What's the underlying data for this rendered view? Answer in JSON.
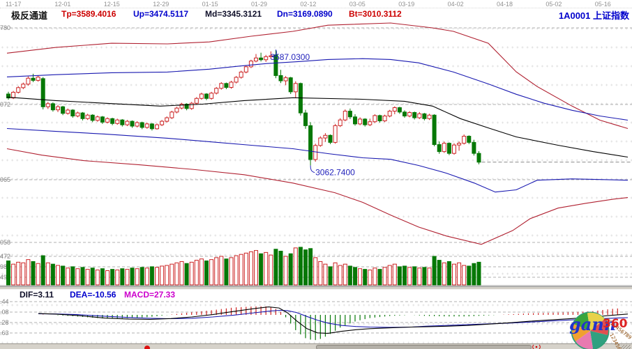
{
  "header": {
    "dates": [
      "11-17",
      "12-01",
      "12-15",
      "12-29",
      "01-15",
      "01-29",
      "02-12",
      "03-05",
      "03-19",
      "04-02",
      "04-18",
      "05-02",
      "05-16"
    ],
    "indicator_name": "极反通道",
    "params": [
      {
        "text": "Tp=3589.4016",
        "color": "#cc0000"
      },
      {
        "text": "Up=3474.5117",
        "color": "#0000cc"
      },
      {
        "text": "Md=3345.3121",
        "color": "#10102a"
      },
      {
        "text": "Dn=3169.0890",
        "color": "#0000cc"
      },
      {
        "text": "Bt=3010.3112",
        "color": "#cc0000"
      }
    ],
    "symbol": "1A0001 上证指数"
  },
  "macd_header": {
    "items": [
      {
        "text": "DIF=3.11",
        "color": "#10102a"
      },
      {
        "text": "DEA=-10.56",
        "color": "#0000cc"
      },
      {
        "text": "MACD=27.33",
        "color": "#cc00cc"
      }
    ]
  },
  "logo": {
    "gann": "gann",
    "num": "360",
    "rim_digits_top": "0123456789",
    "rim_digits_bottom": "123456789"
  },
  "colors": {
    "up": "#cc2222",
    "down": "#067806",
    "tp_bt": "#b02030",
    "up_dn": "#1818b0",
    "md": "#000000",
    "grid": "#b0b0b0",
    "annotation": "#2222bb",
    "axis_text": "#808080"
  },
  "chart_data": {
    "type": "candlestick+volume+macd",
    "title": "1A0001 上证指数 极反通道",
    "ylim": [
      2697,
      3727
    ],
    "price_ticks": [
      [
        40,
        "780"
      ],
      [
        150,
        "072"
      ],
      [
        258,
        "065"
      ],
      [
        348,
        "058"
      ]
    ],
    "vol_ticks": [
      [
        368,
        "472"
      ],
      [
        383,
        "981"
      ],
      [
        398,
        "491"
      ]
    ],
    "macd_ticks": [
      [
        433,
        ".44"
      ],
      [
        448,
        ".08"
      ],
      [
        463,
        ".28"
      ],
      [
        478,
        ".63"
      ]
    ],
    "annotations": {
      "high_label": "3587.0300",
      "low_label": "3062.7400"
    },
    "last_price": 3078,
    "vol_max": 2950,
    "candles": [
      [
        3388,
        3398,
        3362,
        3370
      ],
      [
        3370,
        3402,
        3365,
        3396
      ],
      [
        3396,
        3424,
        3390,
        3417
      ],
      [
        3417,
        3440,
        3410,
        3433
      ],
      [
        3433,
        3468,
        3426,
        3460
      ],
      [
        3460,
        3480,
        3442,
        3450
      ],
      [
        3450,
        3472,
        3444,
        3465
      ],
      [
        3458,
        3465,
        3318,
        3330
      ],
      [
        3330,
        3352,
        3320,
        3344
      ],
      [
        3344,
        3350,
        3308,
        3316
      ],
      [
        3316,
        3338,
        3306,
        3330
      ],
      [
        3330,
        3334,
        3292,
        3300
      ],
      [
        3300,
        3322,
        3294,
        3315
      ],
      [
        3315,
        3319,
        3280,
        3288
      ],
      [
        3288,
        3308,
        3282,
        3302
      ],
      [
        3302,
        3306,
        3268,
        3276
      ],
      [
        3276,
        3298,
        3270,
        3292
      ],
      [
        3292,
        3296,
        3260,
        3268
      ],
      [
        3268,
        3290,
        3262,
        3284
      ],
      [
        3284,
        3288,
        3252,
        3260
      ],
      [
        3260,
        3282,
        3254,
        3276
      ],
      [
        3276,
        3280,
        3246,
        3254
      ],
      [
        3254,
        3276,
        3248,
        3270
      ],
      [
        3270,
        3274,
        3240,
        3248
      ],
      [
        3248,
        3270,
        3242,
        3264
      ],
      [
        3264,
        3268,
        3234,
        3242
      ],
      [
        3242,
        3264,
        3236,
        3258
      ],
      [
        3258,
        3262,
        3228,
        3236
      ],
      [
        3236,
        3258,
        3230,
        3252
      ],
      [
        3252,
        3256,
        3222,
        3230
      ],
      [
        3230,
        3254,
        3226,
        3248
      ],
      [
        3248,
        3270,
        3242,
        3264
      ],
      [
        3264,
        3286,
        3258,
        3280
      ],
      [
        3280,
        3312,
        3274,
        3306
      ],
      [
        3306,
        3330,
        3300,
        3324
      ],
      [
        3324,
        3348,
        3318,
        3342
      ],
      [
        3342,
        3346,
        3314,
        3322
      ],
      [
        3322,
        3352,
        3316,
        3346
      ],
      [
        3346,
        3374,
        3340,
        3368
      ],
      [
        3368,
        3394,
        3362,
        3388
      ],
      [
        3388,
        3392,
        3360,
        3368
      ],
      [
        3368,
        3398,
        3362,
        3392
      ],
      [
        3392,
        3420,
        3386,
        3414
      ],
      [
        3414,
        3442,
        3408,
        3436
      ],
      [
        3436,
        3440,
        3410,
        3418
      ],
      [
        3418,
        3448,
        3412,
        3442
      ],
      [
        3442,
        3470,
        3436,
        3464
      ],
      [
        3464,
        3494,
        3458,
        3488
      ],
      [
        3488,
        3518,
        3482,
        3512
      ],
      [
        3512,
        3544,
        3506,
        3538
      ],
      [
        3538,
        3570,
        3532,
        3552
      ],
      [
        3552,
        3576,
        3536,
        3544
      ],
      [
        3544,
        3566,
        3534,
        3558
      ],
      [
        3558,
        3582,
        3548,
        3562
      ],
      [
        3566,
        3587.03,
        3460,
        3472
      ],
      [
        3472,
        3498,
        3438,
        3448
      ],
      [
        3448,
        3470,
        3428,
        3462
      ],
      [
        3462,
        3466,
        3388,
        3398
      ],
      [
        3398,
        3446,
        3372,
        3436
      ],
      [
        3436,
        3440,
        3290,
        3302
      ],
      [
        3302,
        3316,
        3230,
        3244
      ],
      [
        3244,
        3260,
        3062.74,
        3090
      ],
      [
        3090,
        3162,
        3080,
        3154
      ],
      [
        3154,
        3196,
        3148,
        3188
      ],
      [
        3188,
        3210,
        3170,
        3200
      ],
      [
        3200,
        3204,
        3160,
        3168
      ],
      [
        3168,
        3252,
        3162,
        3244
      ],
      [
        3244,
        3278,
        3238,
        3270
      ],
      [
        3270,
        3318,
        3264,
        3310
      ],
      [
        3310,
        3322,
        3274,
        3284
      ],
      [
        3284,
        3296,
        3244,
        3252
      ],
      [
        3252,
        3282,
        3246,
        3274
      ],
      [
        3274,
        3278,
        3240,
        3248
      ],
      [
        3248,
        3276,
        3242,
        3262
      ],
      [
        3262,
        3296,
        3256,
        3290
      ],
      [
        3290,
        3294,
        3258,
        3266
      ],
      [
        3266,
        3294,
        3260,
        3288
      ],
      [
        3288,
        3316,
        3282,
        3310
      ],
      [
        3310,
        3332,
        3296,
        3326
      ],
      [
        3326,
        3330,
        3298,
        3306
      ],
      [
        3306,
        3314,
        3280,
        3288
      ],
      [
        3288,
        3310,
        3282,
        3304
      ],
      [
        3304,
        3308,
        3272,
        3280
      ],
      [
        3280,
        3306,
        3274,
        3298
      ],
      [
        3298,
        3302,
        3268,
        3276
      ],
      [
        3276,
        3298,
        3270,
        3292
      ],
      [
        3292,
        3296,
        3150,
        3158
      ],
      [
        3158,
        3172,
        3116,
        3126
      ],
      [
        3126,
        3172,
        3120,
        3164
      ],
      [
        3164,
        3168,
        3110,
        3118
      ],
      [
        3118,
        3164,
        3112,
        3156
      ],
      [
        3156,
        3172,
        3130,
        3164
      ],
      [
        3164,
        3204,
        3158,
        3196
      ],
      [
        3196,
        3200,
        3160,
        3168
      ],
      [
        3168,
        3180,
        3108,
        3118
      ],
      [
        3118,
        3128,
        3068,
        3078
      ]
    ],
    "volumes": [
      1850,
      1600,
      1750,
      1700,
      1950,
      1800,
      1650,
      2250,
      1700,
      1600,
      1500,
      1450,
      1300,
      1400,
      1250,
      1350,
      1200,
      1300,
      1150,
      1250,
      1100,
      1200,
      1150,
      1250,
      1200,
      1300,
      1250,
      1350,
      1300,
      1400,
      1350,
      1450,
      1500,
      1600,
      1700,
      1800,
      1650,
      1750,
      1900,
      2000,
      1850,
      1950,
      2100,
      2200,
      2000,
      2100,
      2250,
      2350,
      2450,
      2550,
      2650,
      2400,
      2500,
      2300,
      2750,
      2600,
      2200,
      2400,
      2850,
      2900,
      2700,
      2800,
      2100,
      1800,
      1600,
      1400,
      1700,
      1500,
      1600,
      1450,
      1350,
      1250,
      1200,
      1150,
      1300,
      1200,
      1350,
      1500,
      1600,
      1400,
      1450,
      1350,
      1400,
      1300,
      1350,
      1300,
      2200,
      1900,
      1700,
      1800,
      1600,
      1700,
      1500,
      1450,
      1650,
      1750
    ],
    "channel": {
      "tp": [
        [
          10,
          3574
        ],
        [
          80,
          3600
        ],
        [
          160,
          3619
        ],
        [
          240,
          3616
        ],
        [
          300,
          3625
        ],
        [
          360,
          3651
        ],
        [
          420,
          3673
        ],
        [
          470,
          3701
        ],
        [
          560,
          3711
        ],
        [
          620,
          3689
        ],
        [
          650,
          3673
        ],
        [
          700,
          3619
        ],
        [
          740,
          3489
        ],
        [
          770,
          3422
        ],
        [
          820,
          3333
        ],
        [
          860,
          3269
        ],
        [
          900,
          3231
        ]
      ],
      "up": [
        [
          10,
          3466
        ],
        [
          80,
          3476
        ],
        [
          160,
          3485
        ],
        [
          240,
          3488
        ],
        [
          300,
          3501
        ],
        [
          340,
          3514
        ],
        [
          380,
          3526
        ],
        [
          430,
          3536
        ],
        [
          470,
          3545
        ],
        [
          520,
          3549
        ],
        [
          560,
          3545
        ],
        [
          600,
          3530
        ],
        [
          650,
          3488
        ],
        [
          700,
          3434
        ],
        [
          740,
          3387
        ],
        [
          780,
          3346
        ],
        [
          820,
          3314
        ],
        [
          860,
          3288
        ],
        [
          900,
          3269
        ]
      ],
      "md": [
        [
          10,
          3374
        ],
        [
          80,
          3358
        ],
        [
          150,
          3346
        ],
        [
          230,
          3333
        ],
        [
          290,
          3342
        ],
        [
          350,
          3358
        ],
        [
          420,
          3371
        ],
        [
          520,
          3364
        ],
        [
          580,
          3355
        ],
        [
          620,
          3333
        ],
        [
          660,
          3276
        ],
        [
          700,
          3234
        ],
        [
          740,
          3193
        ],
        [
          800,
          3155
        ],
        [
          850,
          3126
        ],
        [
          900,
          3101
        ]
      ],
      "dn": [
        [
          10,
          3231
        ],
        [
          80,
          3218
        ],
        [
          150,
          3206
        ],
        [
          240,
          3187
        ],
        [
          300,
          3171
        ],
        [
          360,
          3155
        ],
        [
          420,
          3139
        ],
        [
          470,
          3117
        ],
        [
          520,
          3098
        ],
        [
          560,
          3091
        ],
        [
          600,
          3063
        ],
        [
          640,
          3028
        ],
        [
          680,
          2983
        ],
        [
          710,
          2942
        ],
        [
          740,
          2952
        ],
        [
          770,
          2996
        ],
        [
          820,
          3002
        ],
        [
          860,
          2999
        ],
        [
          900,
          2996
        ]
      ],
      "bt": [
        [
          10,
          3139
        ],
        [
          60,
          3110
        ],
        [
          120,
          3085
        ],
        [
          200,
          3066
        ],
        [
          280,
          3044
        ],
        [
          350,
          3021
        ],
        [
          420,
          2983
        ],
        [
          480,
          2939
        ],
        [
          520,
          2895
        ],
        [
          560,
          2837
        ],
        [
          600,
          2783
        ],
        [
          640,
          2742
        ],
        [
          690,
          2704
        ],
        [
          735,
          2767
        ],
        [
          760,
          2821
        ],
        [
          800,
          2869
        ],
        [
          840,
          2891
        ],
        [
          880,
          2910
        ],
        [
          900,
          2917
        ]
      ]
    },
    "macd": {
      "dif": [
        [
          55,
          5
        ],
        [
          80,
          3
        ],
        [
          110,
          -2
        ],
        [
          150,
          -12
        ],
        [
          185,
          -16
        ],
        [
          215,
          -17
        ],
        [
          245,
          -14
        ],
        [
          275,
          -8
        ],
        [
          305,
          1
        ],
        [
          335,
          13
        ],
        [
          365,
          24
        ],
        [
          385,
          30
        ],
        [
          400,
          26
        ],
        [
          412,
          8
        ],
        [
          425,
          -22
        ],
        [
          440,
          -52
        ],
        [
          455,
          -68
        ],
        [
          470,
          -70
        ],
        [
          490,
          -62
        ],
        [
          510,
          -56
        ],
        [
          530,
          -52
        ],
        [
          560,
          -49
        ],
        [
          590,
          -46
        ],
        [
          610,
          -45
        ],
        [
          640,
          -43
        ],
        [
          670,
          -40
        ],
        [
          700,
          -35
        ],
        [
          730,
          -30
        ],
        [
          760,
          -24
        ],
        [
          790,
          -19
        ],
        [
          820,
          -14
        ],
        [
          850,
          -8
        ],
        [
          875,
          -2
        ],
        [
          900,
          3.11
        ]
      ],
      "dea": [
        [
          55,
          4
        ],
        [
          80,
          3.5
        ],
        [
          110,
          1
        ],
        [
          150,
          -5
        ],
        [
          185,
          -10
        ],
        [
          215,
          -13
        ],
        [
          245,
          -14.5
        ],
        [
          275,
          -13
        ],
        [
          305,
          -8
        ],
        [
          335,
          -1
        ],
        [
          365,
          8
        ],
        [
          385,
          14
        ],
        [
          400,
          17
        ],
        [
          412,
          16
        ],
        [
          425,
          9
        ],
        [
          440,
          -6
        ],
        [
          455,
          -20
        ],
        [
          470,
          -31
        ],
        [
          490,
          -40
        ],
        [
          510,
          -44
        ],
        [
          530,
          -46
        ],
        [
          560,
          -47
        ],
        [
          590,
          -46
        ],
        [
          610,
          -43
        ],
        [
          640,
          -40
        ],
        [
          670,
          -37
        ],
        [
          700,
          -34
        ],
        [
          730,
          -31
        ],
        [
          760,
          -27
        ],
        [
          790,
          -23
        ],
        [
          820,
          -19
        ],
        [
          850,
          -15
        ],
        [
          875,
          -13
        ],
        [
          900,
          -10.56
        ]
      ]
    }
  }
}
